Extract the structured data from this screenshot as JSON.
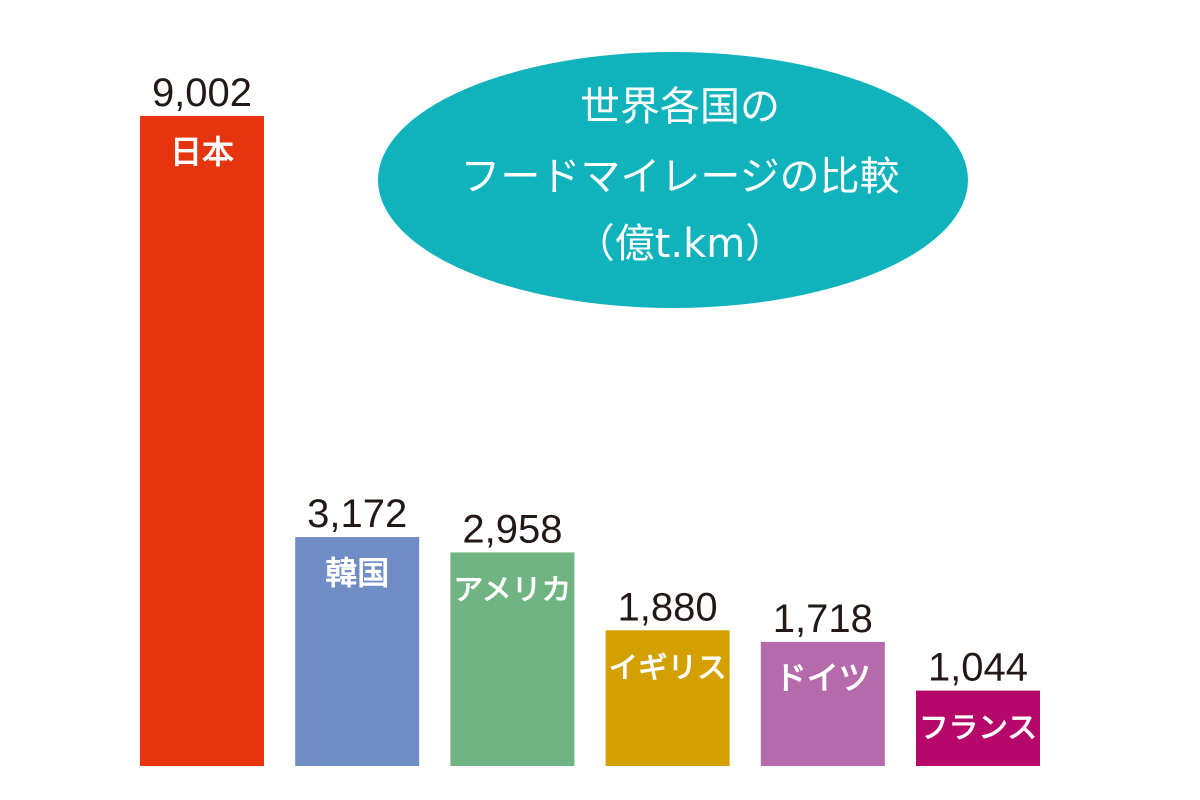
{
  "chart_data": {
    "type": "bar",
    "title_lines": [
      "世界各国の",
      "フードマイレージの比較",
      "（億t.km）"
    ],
    "categories": [
      "日本",
      "韓国",
      "アメリカ",
      "イギリス",
      "ドイツ",
      "フランス"
    ],
    "values": [
      9002,
      3172,
      2958,
      1880,
      1718,
      1044
    ],
    "value_labels": [
      "9,002",
      "3,172",
      "2,958",
      "1,880",
      "1,718",
      "1,044"
    ],
    "colors": [
      "#e5340e",
      "#718dc6",
      "#6fb482",
      "#d3a000",
      "#b56aab",
      "#b5086a"
    ],
    "title_bg_color": "#10b2bc",
    "grid": false,
    "legend": "none"
  }
}
